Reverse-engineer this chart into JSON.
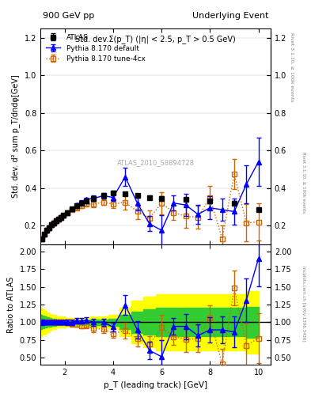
{
  "title_left": "900 GeV pp",
  "title_right": "Underlying Event",
  "right_label_top": "Rivet 3.1.10, ≥ 100k events",
  "right_label_bottom": "mcplots.cern.ch [arXiv:1306.3436]",
  "watermark": "ATLAS_2010_S8894728",
  "subtitle": "Std. dev.Σ(p_T) (|η| < 2.5, p_T > 0.5 GeV)",
  "ylabel_main": "Std. dev. d² sum p_T/dndφ[GeV]",
  "ylabel_ratio": "Ratio to ATLAS",
  "xlabel": "p_T (leading track) [GeV]",
  "xlim": [
    1.0,
    10.5
  ],
  "ylim_main": [
    0.1,
    1.25
  ],
  "ylim_ratio": [
    0.4,
    2.1
  ],
  "atlas_x": [
    1.05,
    1.15,
    1.25,
    1.35,
    1.45,
    1.55,
    1.65,
    1.75,
    1.85,
    1.95,
    2.1,
    2.3,
    2.5,
    2.7,
    2.9,
    3.2,
    3.6,
    4.0,
    4.5,
    5.0,
    5.5,
    6.0,
    7.0,
    8.0,
    9.0,
    10.0
  ],
  "atlas_y": [
    0.13,
    0.155,
    0.175,
    0.19,
    0.205,
    0.215,
    0.225,
    0.235,
    0.245,
    0.255,
    0.27,
    0.29,
    0.305,
    0.32,
    0.33,
    0.345,
    0.36,
    0.375,
    0.37,
    0.36,
    0.35,
    0.345,
    0.34,
    0.33,
    0.32,
    0.285
  ],
  "atlas_yerr": [
    0.01,
    0.01,
    0.01,
    0.01,
    0.01,
    0.01,
    0.01,
    0.01,
    0.01,
    0.01,
    0.01,
    0.01,
    0.01,
    0.01,
    0.01,
    0.01,
    0.01,
    0.01,
    0.01,
    0.01,
    0.01,
    0.01,
    0.01,
    0.01,
    0.01,
    0.01
  ],
  "pythia_def_x": [
    1.05,
    1.15,
    1.25,
    1.35,
    1.45,
    1.55,
    1.65,
    1.75,
    1.85,
    1.95,
    2.1,
    2.3,
    2.5,
    2.7,
    2.9,
    3.2,
    3.6,
    4.0,
    4.5,
    5.0,
    5.5,
    6.0,
    6.5,
    7.0,
    7.5,
    8.0,
    8.5,
    9.0,
    9.5,
    10.0
  ],
  "pythia_def_y": [
    0.13,
    0.155,
    0.175,
    0.19,
    0.205,
    0.215,
    0.225,
    0.235,
    0.245,
    0.255,
    0.27,
    0.29,
    0.31,
    0.325,
    0.34,
    0.345,
    0.36,
    0.35,
    0.46,
    0.32,
    0.21,
    0.175,
    0.32,
    0.31,
    0.26,
    0.295,
    0.285,
    0.275,
    0.42,
    0.54
  ],
  "pythia_def_yerr": [
    0.005,
    0.005,
    0.005,
    0.005,
    0.005,
    0.005,
    0.005,
    0.005,
    0.005,
    0.005,
    0.007,
    0.007,
    0.01,
    0.01,
    0.01,
    0.015,
    0.015,
    0.02,
    0.05,
    0.04,
    0.04,
    0.08,
    0.04,
    0.06,
    0.05,
    0.06,
    0.06,
    0.07,
    0.1,
    0.13
  ],
  "pythia_4cx_x": [
    1.05,
    1.15,
    1.25,
    1.35,
    1.45,
    1.55,
    1.65,
    1.75,
    1.85,
    1.95,
    2.1,
    2.3,
    2.5,
    2.7,
    2.9,
    3.2,
    3.6,
    4.0,
    4.5,
    5.0,
    5.5,
    6.0,
    6.5,
    7.0,
    7.5,
    8.0,
    8.5,
    9.0,
    9.5,
    10.0
  ],
  "pythia_4cx_y": [
    0.13,
    0.155,
    0.175,
    0.19,
    0.205,
    0.215,
    0.225,
    0.235,
    0.245,
    0.255,
    0.27,
    0.285,
    0.295,
    0.305,
    0.315,
    0.315,
    0.325,
    0.315,
    0.325,
    0.275,
    0.24,
    0.32,
    0.27,
    0.25,
    0.245,
    0.35,
    0.13,
    0.475,
    0.215,
    0.22
  ],
  "pythia_4cx_yerr": [
    0.005,
    0.005,
    0.005,
    0.005,
    0.005,
    0.005,
    0.005,
    0.005,
    0.005,
    0.005,
    0.007,
    0.007,
    0.01,
    0.01,
    0.01,
    0.015,
    0.015,
    0.02,
    0.04,
    0.04,
    0.04,
    0.06,
    0.04,
    0.06,
    0.06,
    0.06,
    0.07,
    0.08,
    0.1,
    0.1
  ],
  "ratio_def_y": [
    1.0,
    1.0,
    1.0,
    1.0,
    1.0,
    1.0,
    1.0,
    1.0,
    1.0,
    1.0,
    1.0,
    1.0,
    1.02,
    1.015,
    1.03,
    1.0,
    1.0,
    0.93,
    1.24,
    0.89,
    0.6,
    0.51,
    0.94,
    0.94,
    0.81,
    0.89,
    0.89,
    0.86,
    1.31,
    1.9
  ],
  "ratio_def_yerr": [
    0.04,
    0.03,
    0.03,
    0.03,
    0.03,
    0.03,
    0.03,
    0.03,
    0.03,
    0.03,
    0.04,
    0.04,
    0.04,
    0.04,
    0.04,
    0.05,
    0.05,
    0.06,
    0.14,
    0.12,
    0.12,
    0.23,
    0.12,
    0.18,
    0.16,
    0.18,
    0.19,
    0.22,
    0.31,
    0.39
  ],
  "ratio_4cx_y": [
    1.0,
    1.0,
    1.0,
    1.0,
    1.0,
    1.0,
    1.0,
    1.0,
    1.0,
    1.0,
    1.0,
    0.98,
    0.97,
    0.95,
    0.955,
    0.91,
    0.9,
    0.84,
    0.878,
    0.764,
    0.686,
    0.928,
    0.794,
    0.758,
    0.764,
    1.06,
    0.406,
    1.484,
    0.672,
    0.772
  ],
  "ratio_4cx_yerr": [
    0.04,
    0.03,
    0.03,
    0.03,
    0.03,
    0.03,
    0.03,
    0.03,
    0.03,
    0.03,
    0.04,
    0.04,
    0.04,
    0.04,
    0.04,
    0.05,
    0.05,
    0.06,
    0.11,
    0.11,
    0.11,
    0.18,
    0.12,
    0.18,
    0.19,
    0.18,
    0.22,
    0.25,
    0.31,
    0.35
  ],
  "band_x": [
    1.0,
    1.1,
    1.2,
    1.3,
    1.4,
    1.5,
    1.6,
    1.7,
    1.8,
    1.9,
    2.1,
    2.3,
    2.5,
    2.7,
    2.9,
    3.2,
    3.6,
    4.0,
    4.5,
    5.0,
    5.5,
    6.0,
    7.0,
    8.0,
    9.0,
    10.0
  ],
  "band_green_lo": [
    0.9,
    0.91,
    0.92,
    0.93,
    0.94,
    0.95,
    0.95,
    0.96,
    0.96,
    0.96,
    0.97,
    0.97,
    0.97,
    0.97,
    0.97,
    0.96,
    0.96,
    0.95,
    0.9,
    0.85,
    0.82,
    0.8,
    0.8,
    0.8,
    0.8,
    0.78
  ],
  "band_green_hi": [
    1.1,
    1.09,
    1.08,
    1.07,
    1.06,
    1.05,
    1.05,
    1.04,
    1.04,
    1.04,
    1.03,
    1.03,
    1.03,
    1.03,
    1.03,
    1.04,
    1.04,
    1.05,
    1.1,
    1.15,
    1.18,
    1.2,
    1.2,
    1.2,
    1.2,
    1.22
  ],
  "band_yellow_lo": [
    0.8,
    0.82,
    0.84,
    0.86,
    0.88,
    0.9,
    0.9,
    0.92,
    0.92,
    0.92,
    0.94,
    0.94,
    0.94,
    0.94,
    0.94,
    0.92,
    0.92,
    0.9,
    0.8,
    0.7,
    0.64,
    0.6,
    0.6,
    0.6,
    0.6,
    0.56
  ],
  "band_yellow_hi": [
    1.2,
    1.18,
    1.16,
    1.14,
    1.12,
    1.1,
    1.1,
    1.08,
    1.08,
    1.08,
    1.06,
    1.06,
    1.06,
    1.06,
    1.06,
    1.08,
    1.08,
    1.1,
    1.2,
    1.3,
    1.36,
    1.4,
    1.4,
    1.4,
    1.4,
    1.44
  ],
  "color_atlas": "#000000",
  "color_pythia_def": "#0000ff",
  "color_pythia_4cx": "#cc6600",
  "color_band_green": "#33cc33",
  "color_band_yellow": "#ffff00"
}
